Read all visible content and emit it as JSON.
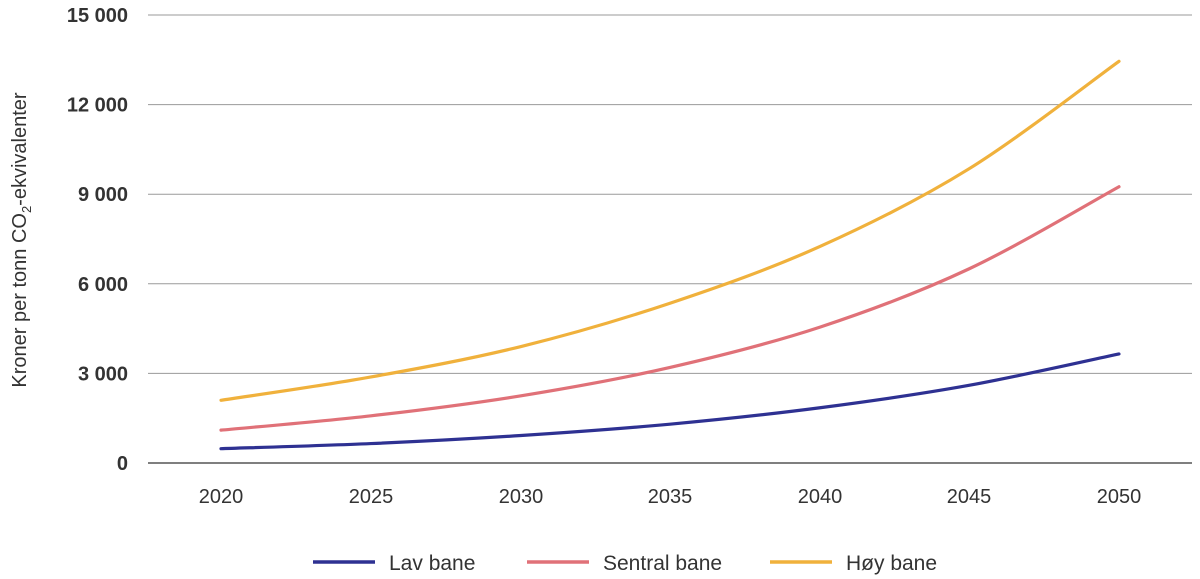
{
  "chart_data": {
    "type": "line",
    "ylabel_main": "Kroner per tonn CO",
    "ylabel_sub": "2",
    "ylabel_tail": "-ekvivalenter",
    "xlabel": "",
    "x": [
      2020,
      2025,
      2030,
      2035,
      2040,
      2045,
      2050
    ],
    "ylim": [
      0,
      15000
    ],
    "yticks": [
      0,
      3000,
      6000,
      9000,
      12000,
      15000
    ],
    "ytick_labels": [
      "0",
      "3 000",
      "6 000",
      "9 000",
      "12 000",
      "15 000"
    ],
    "xtick_labels": [
      "2020",
      "2025",
      "2030",
      "2035",
      "2040",
      "2045",
      "2050"
    ],
    "grid": true,
    "legend_position": "bottom",
    "series": [
      {
        "name": "Lav bane",
        "color": "#2e3192",
        "values": [
          480,
          650,
          920,
          1300,
          1850,
          2600,
          3650
        ]
      },
      {
        "name": "Sentral bane",
        "color": "#e07178",
        "values": [
          1100,
          1580,
          2250,
          3200,
          4550,
          6500,
          9250
        ]
      },
      {
        "name": "Høy bane",
        "color": "#f0b13c",
        "values": [
          2100,
          2880,
          3900,
          5350,
          7250,
          9850,
          13450
        ]
      }
    ]
  }
}
